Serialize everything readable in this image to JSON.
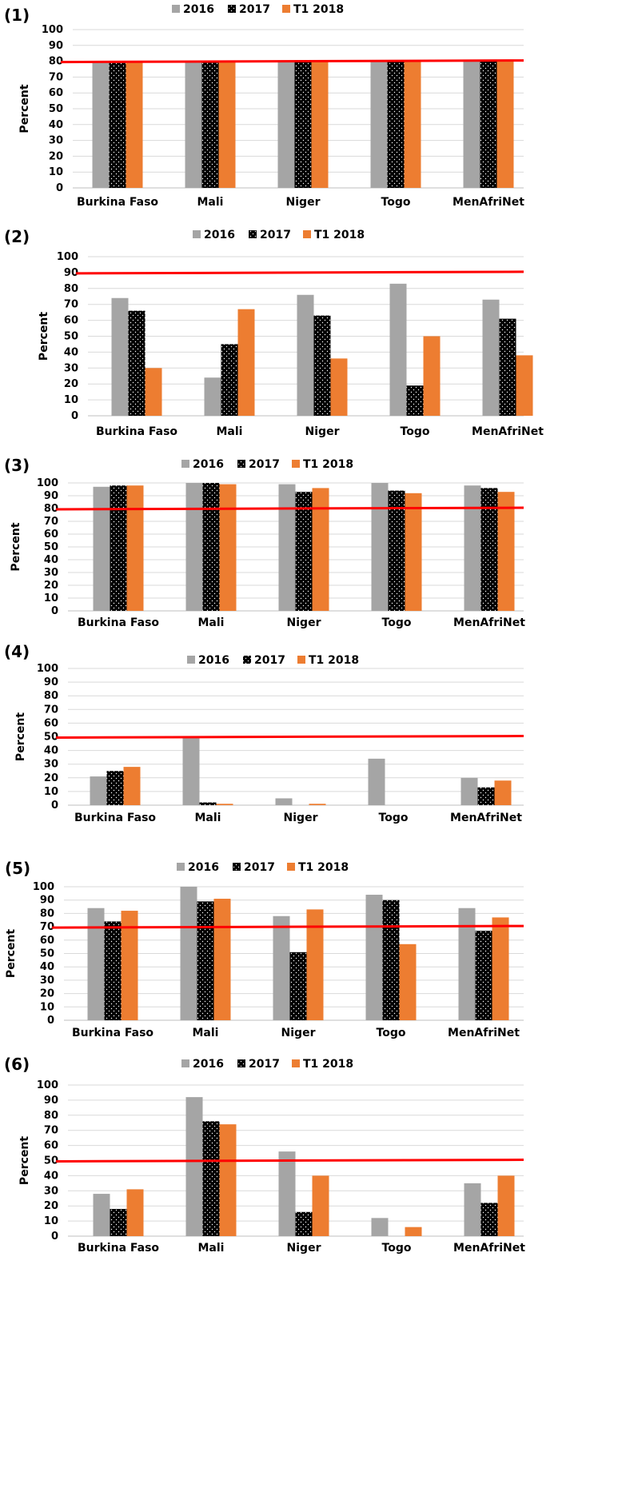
{
  "series_names": [
    "2016",
    "2017",
    "T1 2018"
  ],
  "colors": {
    "s2016": "#a5a5a5",
    "s2017": "#000000",
    "sT1": "#ed7d31",
    "target": "#ff0000",
    "grid": "#d9d9d9"
  },
  "chart_data": [
    {
      "type": "bar",
      "panel_label": "(1)",
      "categories": [
        "Burkina Faso",
        "Mali",
        "Niger",
        "Togo",
        "MenAfriNet"
      ],
      "series": [
        {
          "name": "2016",
          "values": [
            80,
            80,
            80,
            80,
            80
          ]
        },
        {
          "name": "2017",
          "values": [
            80,
            80,
            80,
            80,
            80
          ]
        },
        {
          "name": "T1 2018",
          "values": [
            80,
            80,
            80,
            80,
            80
          ]
        }
      ],
      "target": 80,
      "ylabel": "Percent",
      "ylim": [
        0,
        100
      ],
      "yticks": [
        "0",
        "10",
        "20",
        "30",
        "40",
        "50",
        "60",
        "70",
        "80",
        "90",
        "100"
      ],
      "grid": true,
      "legend": "top"
    },
    {
      "type": "bar",
      "panel_label": "(2)",
      "categories": [
        "Burkina Faso",
        "Mali",
        "Niger",
        "Togo",
        "MenAfriNet"
      ],
      "series": [
        {
          "name": "2016",
          "values": [
            74,
            24,
            76,
            83,
            73
          ]
        },
        {
          "name": "2017",
          "values": [
            66,
            45,
            63,
            19,
            61
          ]
        },
        {
          "name": "T1 2018",
          "values": [
            30,
            67,
            36,
            50,
            38
          ]
        }
      ],
      "target": 90,
      "ylabel": "Percent",
      "ylim": [
        0,
        100
      ],
      "yticks": [
        "0",
        "10",
        "20",
        "30",
        "40",
        "50",
        "60",
        "70",
        "80",
        "90",
        "100"
      ],
      "grid": true,
      "legend": "top"
    },
    {
      "type": "bar",
      "panel_label": "(3)",
      "categories": [
        "Burkina Faso",
        "Mali",
        "Niger",
        "Togo",
        "MenAfriNet"
      ],
      "series": [
        {
          "name": "2016",
          "values": [
            97,
            100,
            99,
            100,
            98
          ]
        },
        {
          "name": "2017",
          "values": [
            98,
            100,
            93,
            94,
            96
          ]
        },
        {
          "name": "T1 2018",
          "values": [
            98,
            99,
            96,
            92,
            93
          ]
        }
      ],
      "target": 80,
      "ylabel": "Percent",
      "ylim": [
        0,
        100
      ],
      "yticks": [
        "0",
        "10",
        "20",
        "30",
        "40",
        "50",
        "60",
        "70",
        "80",
        "90",
        "100"
      ],
      "grid": true,
      "legend": "top"
    },
    {
      "type": "bar",
      "panel_label": "(4)",
      "categories": [
        "Burkina Faso",
        "Mali",
        "Niger",
        "Togo",
        "MenAfriNet"
      ],
      "series": [
        {
          "name": "2016",
          "values": [
            21,
            50,
            5,
            34,
            20
          ]
        },
        {
          "name": "2017",
          "values": [
            25,
            2,
            0,
            0,
            13
          ]
        },
        {
          "name": "T1 2018",
          "values": [
            28,
            1,
            1,
            0,
            18
          ]
        }
      ],
      "target": 50,
      "ylabel": "Percent",
      "ylim": [
        0,
        100
      ],
      "yticks": [
        "0",
        "10",
        "20",
        "30",
        "40",
        "50",
        "60",
        "70",
        "80",
        "90",
        "100"
      ],
      "grid": true,
      "legend": "top"
    },
    {
      "type": "bar",
      "panel_label": "(5)",
      "categories": [
        "Burkina Faso",
        "Mali",
        "Niger",
        "Togo",
        "MenAfriNet"
      ],
      "series": [
        {
          "name": "2016",
          "values": [
            84,
            100,
            78,
            94,
            84
          ]
        },
        {
          "name": "2017",
          "values": [
            74,
            89,
            51,
            90,
            67
          ]
        },
        {
          "name": "T1 2018",
          "values": [
            82,
            91,
            83,
            57,
            77
          ]
        }
      ],
      "target": 70,
      "ylabel": "Percent",
      "ylim": [
        0,
        100
      ],
      "yticks": [
        "0",
        "10",
        "20",
        "30",
        "40",
        "50",
        "60",
        "70",
        "80",
        "90",
        "100"
      ],
      "grid": true,
      "legend": "top"
    },
    {
      "type": "bar",
      "panel_label": "(6)",
      "categories": [
        "Burkina Faso",
        "Mali",
        "Niger",
        "Togo",
        "MenAfriNet"
      ],
      "series": [
        {
          "name": "2016",
          "values": [
            28,
            92,
            56,
            12,
            35
          ]
        },
        {
          "name": "2017",
          "values": [
            18,
            76,
            16,
            0,
            22
          ]
        },
        {
          "name": "T1 2018",
          "values": [
            31,
            74,
            40,
            6,
            40
          ]
        }
      ],
      "target": 50,
      "ylabel": "Percent",
      "ylim": [
        0,
        100
      ],
      "yticks": [
        "0",
        "10",
        "20",
        "30",
        "40",
        "50",
        "60",
        "70",
        "80",
        "90",
        "100"
      ],
      "grid": true,
      "legend": "top"
    }
  ]
}
